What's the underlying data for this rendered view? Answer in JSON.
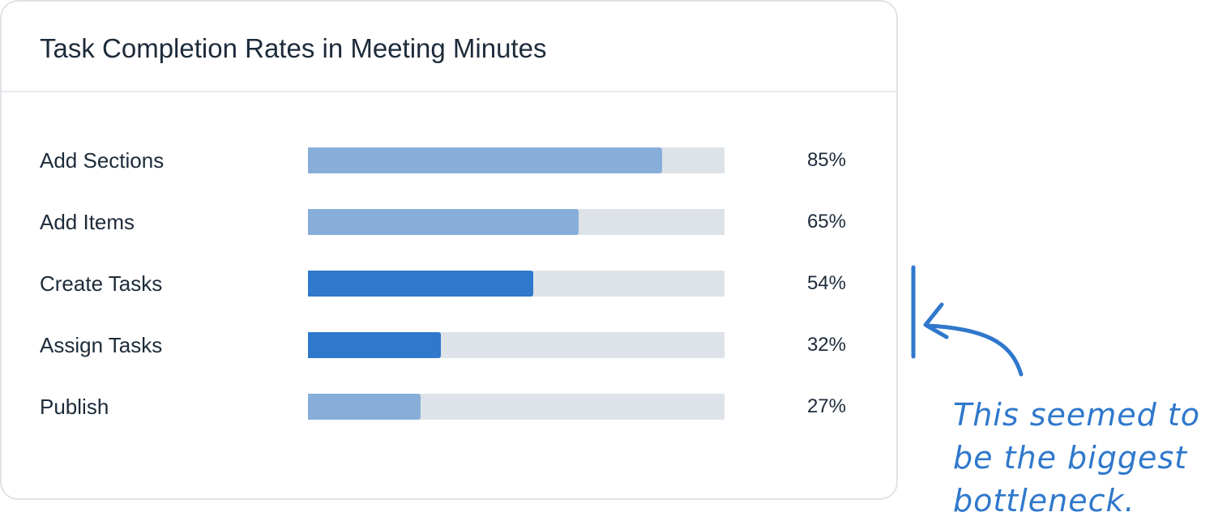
{
  "chart_data": {
    "type": "bar",
    "orientation": "horizontal",
    "title": "Task Completion Rates in Meeting Minutes",
    "categories": [
      "Add Sections",
      "Add Items",
      "Create Tasks",
      "Assign Tasks",
      "Publish"
    ],
    "values": [
      85,
      65,
      54,
      32,
      27
    ],
    "value_labels": [
      "85%",
      "65%",
      "54%",
      "32%",
      "27%"
    ],
    "highlighted": [
      false,
      false,
      true,
      true,
      false
    ],
    "xlim": [
      0,
      100
    ],
    "grid": false,
    "legend": "none"
  },
  "colors": {
    "bar_default": "#87aed9",
    "bar_highlight": "#2f78cc",
    "track": "#dde3e8",
    "annotation": "#2f78cc"
  },
  "annotation": {
    "text": "This seemed to\nbe the biggest\nbottleneck."
  }
}
